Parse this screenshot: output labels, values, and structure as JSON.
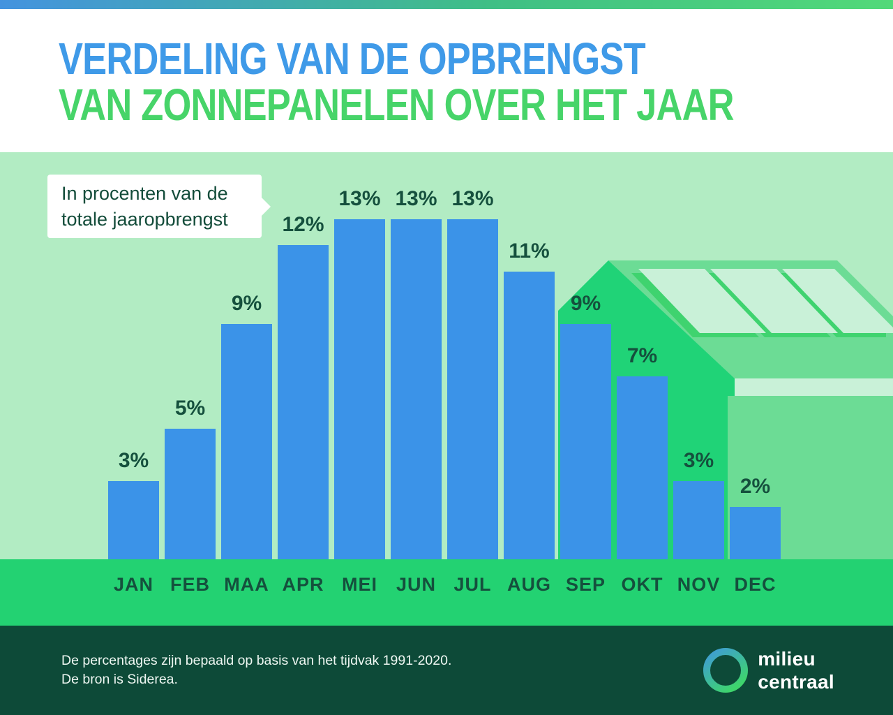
{
  "header": {
    "title_line1": "VERDELING VAN DE OPBRENGST",
    "title_line2": "VAN ZONNEPANELEN OVER HET JAAR"
  },
  "callout": {
    "line1": "In procenten van de",
    "line2": "totale jaaropbrengst"
  },
  "chart_data": {
    "type": "bar",
    "title": "Verdeling van de opbrengst van zonnepanelen over het jaar",
    "annotation": "In procenten van de totale jaaropbrengst",
    "categories": [
      "JAN",
      "FEB",
      "MAA",
      "APR",
      "MEI",
      "JUN",
      "JUL",
      "AUG",
      "SEP",
      "OKT",
      "NOV",
      "DEC"
    ],
    "values": [
      3,
      5,
      9,
      12,
      13,
      13,
      13,
      11,
      9,
      7,
      3,
      2
    ],
    "unit": "%",
    "ylim": [
      0,
      13
    ],
    "gridlines": false,
    "data_labels": true,
    "bar_color": "#3b93e8",
    "background": "#b2ecc3"
  },
  "footer": {
    "note_line1": "De percentages zijn bepaald op basis van het tijdvak 1991-2020.",
    "note_line2": "De bron is Siderea.",
    "logo_line1": "milieu",
    "logo_line2": "centraal"
  },
  "icons": {
    "logo_ring": "gradient-ring-icon",
    "callout_pointer": "right-triangle",
    "house": "house-with-solar-panels"
  },
  "colors": {
    "topbar_blue": "#4493df",
    "topbar_green": "#52d979",
    "title_blue": "#3f9ae8",
    "title_green": "#47d469",
    "chart_bg": "#b2ecc3",
    "bar_blue": "#3b93e8",
    "label_ink": "#15503d",
    "bubble_bg": "#ffffff",
    "bubble_ink": "#134c3a",
    "gable_green": "#20d377",
    "roof_green": "#6cdc95",
    "panel_mint": "#c9f1d8",
    "panel_edge": "#3fd36f",
    "band_green": "#23d272",
    "footer_dark": "#0d4a38",
    "footer_text": "#eef7f2",
    "logo_blue": "#3f9ad8",
    "logo_green": "#3ed46c"
  }
}
